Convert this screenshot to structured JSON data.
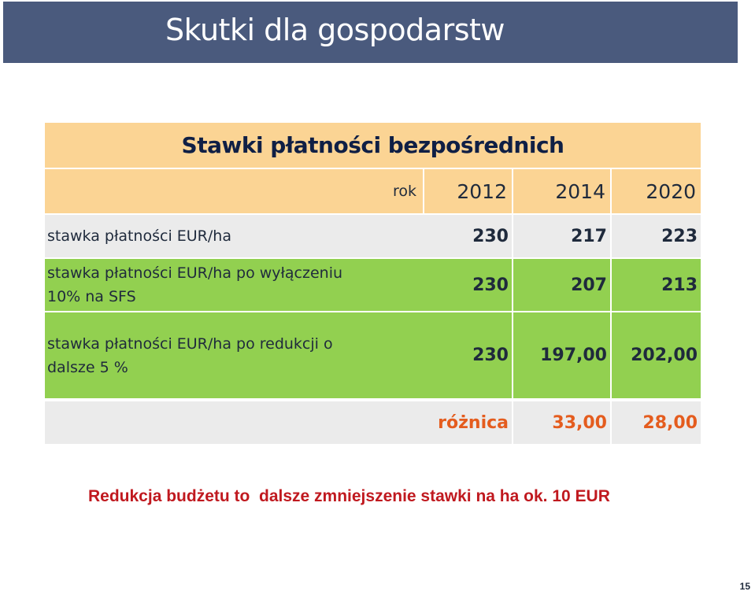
{
  "slide": {
    "title": "Skutki dla gospodarstw",
    "page_number": "15"
  },
  "table": {
    "title": "Stawki płatności bezpośrednich",
    "year_label": "rok",
    "years": [
      "2012",
      "2014",
      "2020"
    ],
    "rows": [
      {
        "label": "stawka płatności EUR/ha",
        "values": [
          "230",
          "217",
          "223"
        ]
      },
      {
        "label_line1": "stawka płatności EUR/ha po wyłączeniu",
        "label_line2": "10% na SFS",
        "values": [
          "230",
          "207",
          "213"
        ]
      },
      {
        "label_line1": "stawka płatności EUR/ha po redukcji o",
        "label_line2": "dalsze 5 %",
        "values": [
          "230",
          "197,00",
          "202,00"
        ]
      }
    ],
    "difference": {
      "label": "różnica",
      "values": [
        "33,00",
        "28,00"
      ]
    }
  },
  "note": "Redukcja budżetu to  dalsze zmniejszenie stawki na ha ok. 10 EUR",
  "colors": {
    "title_bar": "#4a5a7d",
    "header_fill": "#fbd494",
    "green_fill": "#92d050",
    "gray_fill": "#ebebeb",
    "difference_text": "#e45c1e",
    "note_text": "#c0191f"
  }
}
